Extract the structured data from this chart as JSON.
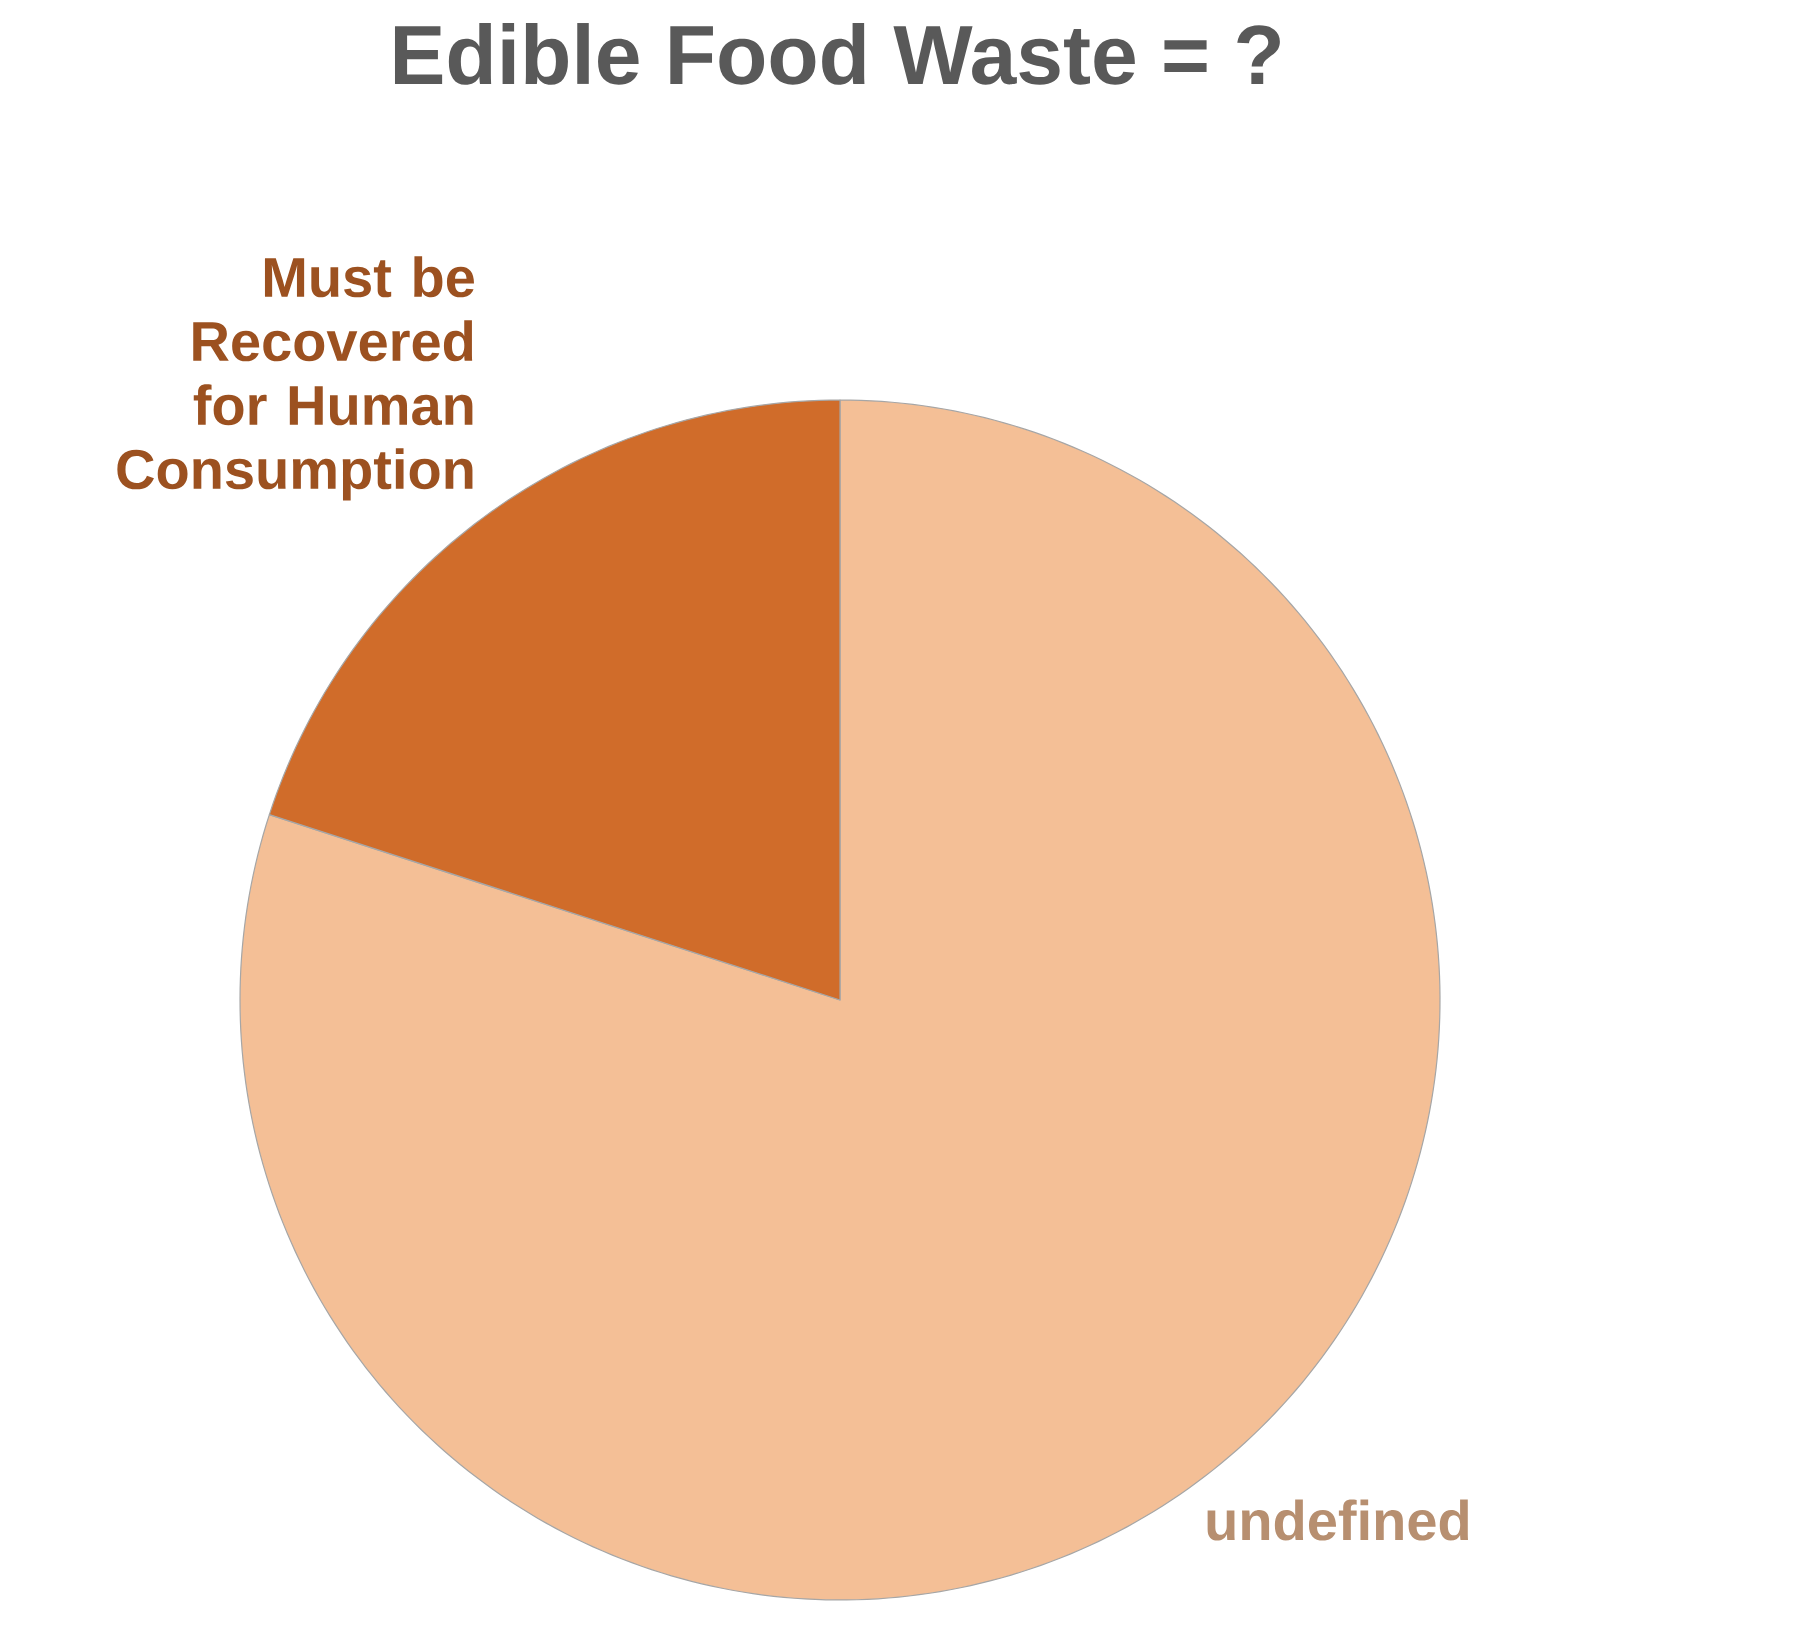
{
  "chart_data": {
    "type": "pie",
    "title": "Edible Food Waste = ?",
    "categories": [
      "undefined",
      "Must be Recovered for Human Consumption"
    ],
    "values": [
      80,
      20
    ],
    "colors": [
      "#f4bf96",
      "#d06c2a"
    ]
  }
}
